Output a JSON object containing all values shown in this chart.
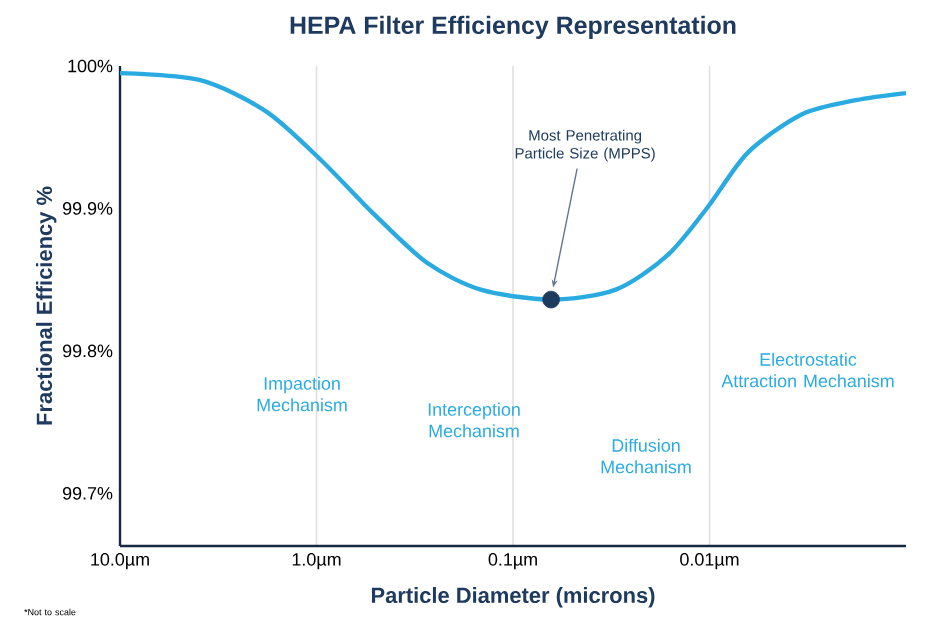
{
  "chart_data": {
    "type": "line",
    "title": "HEPA Filter Efficiency Representation",
    "xlabel": "Particle Diameter (microns)",
    "ylabel": "Fractional Efficiency %",
    "log": "x",
    "grid": "x",
    "xlim": [
      10,
      0.001
    ],
    "ylim": [
      99.663,
      100.0
    ],
    "xticks": [
      {
        "value": 10,
        "label": "10.0µm"
      },
      {
        "value": 1,
        "label": "1.0µm"
      },
      {
        "value": 0.1,
        "label": "0.1µm"
      },
      {
        "value": 0.01,
        "label": "0.01µm"
      }
    ],
    "yticks": [
      {
        "value": 99.7,
        "label": "99.7%"
      },
      {
        "value": 99.8,
        "label": "99.8%"
      },
      {
        "value": 99.9,
        "label": "99.9%"
      },
      {
        "value": 100,
        "label": "100%"
      }
    ],
    "series": [
      {
        "type": "line",
        "color": "#29abe2",
        "x": [
          10,
          3.9,
          1.8,
          0.95,
          0.51,
          0.275,
          0.146,
          0.064,
          0.03,
          0.0164,
          0.0102,
          0.0064,
          0.0034,
          0.0018,
          0.001
        ],
        "values": [
          99.995,
          99.99,
          99.968,
          99.934,
          99.896,
          99.862,
          99.843,
          99.836,
          99.843,
          99.867,
          99.901,
          99.939,
          99.966,
          99.976,
          99.981
        ]
      },
      {
        "type": "scatter",
        "color": "#1f3a5f",
        "marker": "circle",
        "x": [
          0.064
        ],
        "values": [
          99.836
        ]
      }
    ],
    "annotations": [
      {
        "text": "Most Penetrating Particle Size (MPPS)",
        "x": 0.064,
        "y": 99.836
      },
      "Impaction Mechanism",
      "Interception Mechanism",
      "Diffusion Mechanism",
      "Electrostatic Attraction Mechanism",
      "*Not to scale"
    ]
  }
}
